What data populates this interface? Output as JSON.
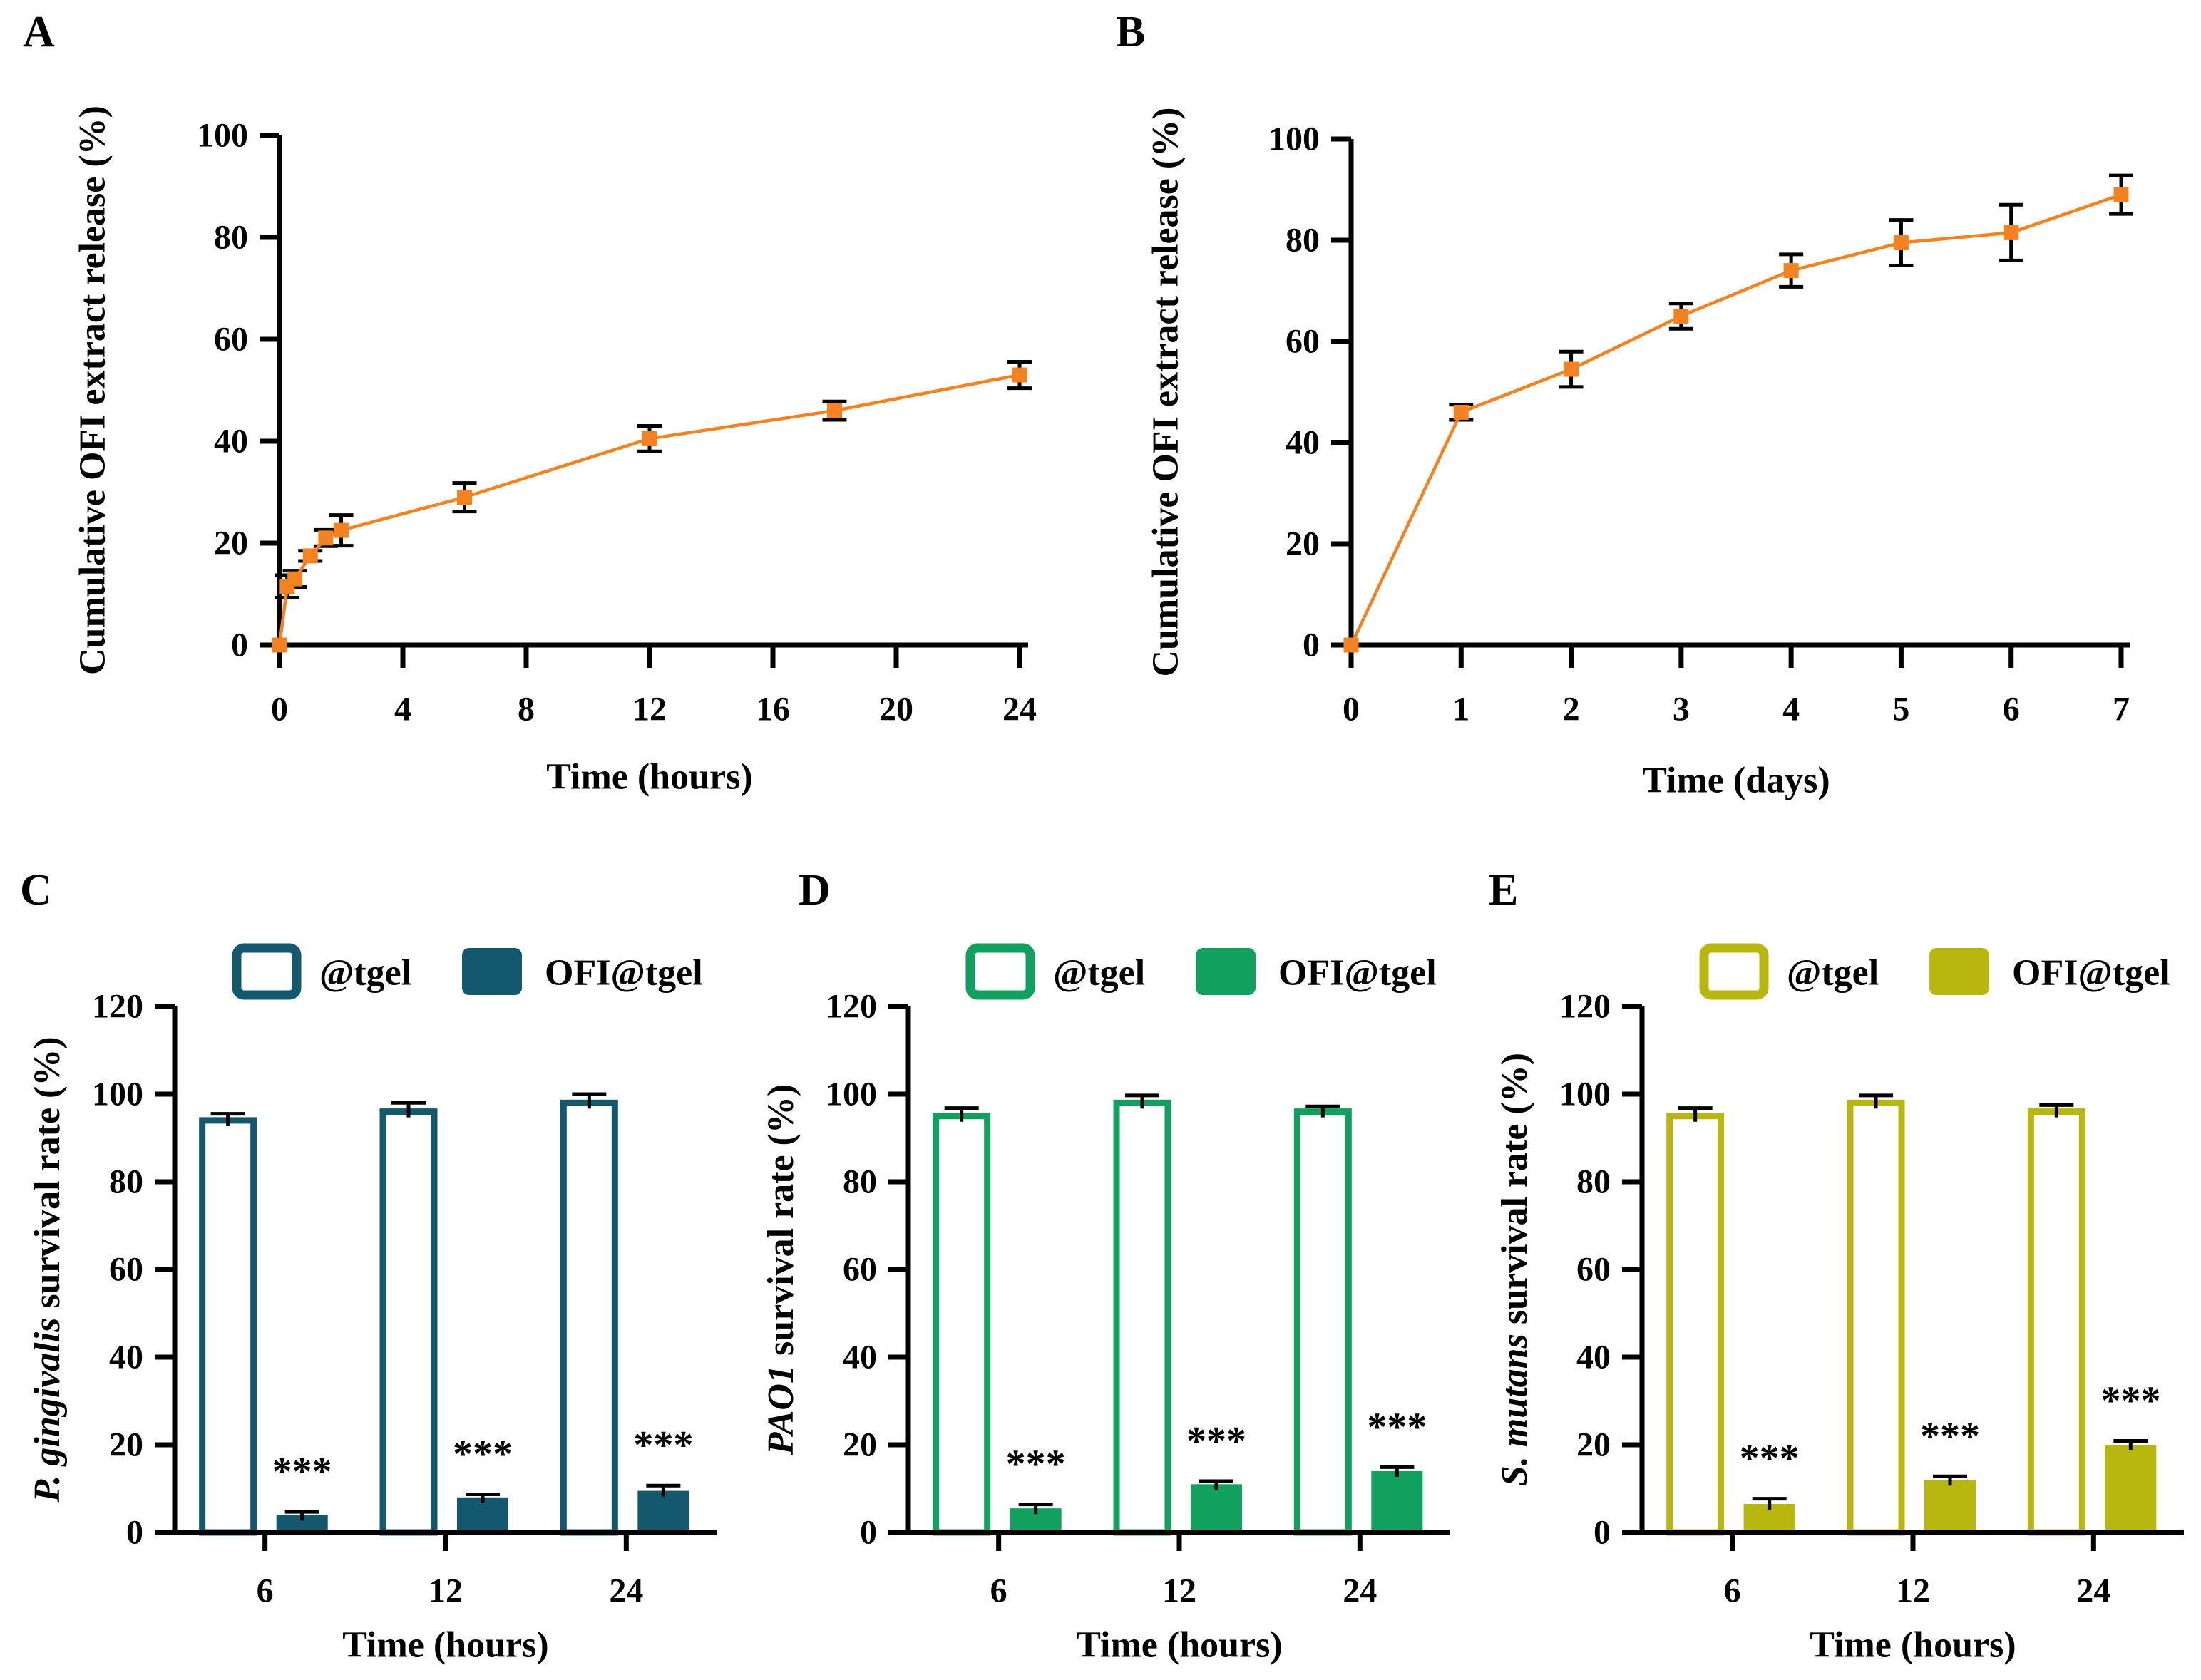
{
  "figure": {
    "background": "#ffffff",
    "text_color": "#000000",
    "error_bar_color": "#000000"
  },
  "legend_labels": {
    "open": "@tgel",
    "filled": "OFI@tgel"
  },
  "chart_data": [
    {
      "panel_label": "A",
      "type": "line",
      "xlabel": "Time (hours)",
      "ylabel": "Cumulative OFI extract release (%)",
      "color": "#F58220",
      "marker": "square",
      "xlim": [
        0,
        24
      ],
      "ylim": [
        0,
        100
      ],
      "xticks": [
        0,
        4,
        8,
        12,
        16,
        20,
        24
      ],
      "yticks": [
        0,
        20,
        40,
        60,
        80,
        100
      ],
      "points": [
        {
          "x": 0,
          "y": 0,
          "err": 0
        },
        {
          "x": 0.25,
          "y": 11.5,
          "err": 2.2
        },
        {
          "x": 0.5,
          "y": 13,
          "err": 1.6
        },
        {
          "x": 1,
          "y": 17.5,
          "err": 1.0
        },
        {
          "x": 1.5,
          "y": 21,
          "err": 1.6
        },
        {
          "x": 2,
          "y": 22.5,
          "err": 3.0
        },
        {
          "x": 6,
          "y": 29,
          "err": 2.8
        },
        {
          "x": 12,
          "y": 40.5,
          "err": 2.5
        },
        {
          "x": 18,
          "y": 46,
          "err": 1.8
        },
        {
          "x": 24,
          "y": 53,
          "err": 2.6
        }
      ]
    },
    {
      "panel_label": "B",
      "type": "line",
      "xlabel": "Time (days)",
      "ylabel": "Cumulative OFI extract release (%)",
      "color": "#F58220",
      "marker": "square",
      "xlim": [
        0,
        7
      ],
      "ylim": [
        0,
        100
      ],
      "xticks": [
        0,
        1,
        2,
        3,
        4,
        5,
        6,
        7
      ],
      "yticks": [
        0,
        20,
        40,
        60,
        80,
        100
      ],
      "points": [
        {
          "x": 0,
          "y": 0,
          "err": 0
        },
        {
          "x": 1,
          "y": 46,
          "err": 1.5
        },
        {
          "x": 2,
          "y": 54.5,
          "err": 3.5
        },
        {
          "x": 3,
          "y": 65,
          "err": 2.5
        },
        {
          "x": 4,
          "y": 74,
          "err": 3.2
        },
        {
          "x": 5,
          "y": 79.5,
          "err": 4.5
        },
        {
          "x": 6,
          "y": 81.5,
          "err": 5.5
        },
        {
          "x": 7,
          "y": 89,
          "err": 3.8
        }
      ]
    },
    {
      "panel_label": "C",
      "type": "grouped_bar",
      "xlabel": "Time (hours)",
      "ylabel_italic": "P. gingivalis",
      "ylabel_rest": " survival rate (%)",
      "color": "#14586E",
      "categories": [
        "6",
        "12",
        "24"
      ],
      "ylim": [
        0,
        120
      ],
      "yticks": [
        0,
        20,
        40,
        60,
        80,
        100,
        120
      ],
      "series": [
        {
          "name": "@tgel",
          "style": "open",
          "values": [
            94,
            96,
            98
          ],
          "errors": [
            1.5,
            2.0,
            2.0
          ]
        },
        {
          "name": "OFI@tgel",
          "style": "filled",
          "values": [
            4,
            8,
            9.5
          ],
          "errors": [
            0.7,
            0.7,
            1.2
          ],
          "significance": [
            "***",
            "***",
            "***"
          ]
        }
      ]
    },
    {
      "panel_label": "D",
      "type": "grouped_bar",
      "xlabel": "Time (hours)",
      "ylabel_italic": "PAO1",
      "ylabel_rest": " survival rate (%)",
      "color": "#12A05F",
      "categories": [
        "6",
        "12",
        "24"
      ],
      "ylim": [
        0,
        120
      ],
      "yticks": [
        0,
        20,
        40,
        60,
        80,
        100,
        120
      ],
      "series": [
        {
          "name": "@tgel",
          "style": "open",
          "values": [
            95,
            98,
            96
          ],
          "errors": [
            1.8,
            1.7,
            1.2
          ]
        },
        {
          "name": "OFI@tgel",
          "style": "filled",
          "values": [
            5.5,
            11,
            14
          ],
          "errors": [
            0.9,
            0.7,
            0.9
          ],
          "significance": [
            "***",
            "***",
            "***"
          ]
        }
      ]
    },
    {
      "panel_label": "E",
      "type": "grouped_bar",
      "xlabel": "Time (hours)",
      "ylabel_italic": "S. mutans",
      "ylabel_rest": " survival rate (%)",
      "color": "#B7B710",
      "categories": [
        "6",
        "12",
        "24"
      ],
      "ylim": [
        0,
        120
      ],
      "yticks": [
        0,
        20,
        40,
        60,
        80,
        100,
        120
      ],
      "series": [
        {
          "name": "@tgel",
          "style": "open",
          "values": [
            95,
            98,
            96
          ],
          "errors": [
            1.8,
            1.7,
            1.5
          ]
        },
        {
          "name": "OFI@tgel",
          "style": "filled",
          "values": [
            6.5,
            12,
            20
          ],
          "errors": [
            1.2,
            0.8,
            0.9
          ],
          "significance": [
            "***",
            "***",
            "***"
          ]
        }
      ]
    }
  ]
}
